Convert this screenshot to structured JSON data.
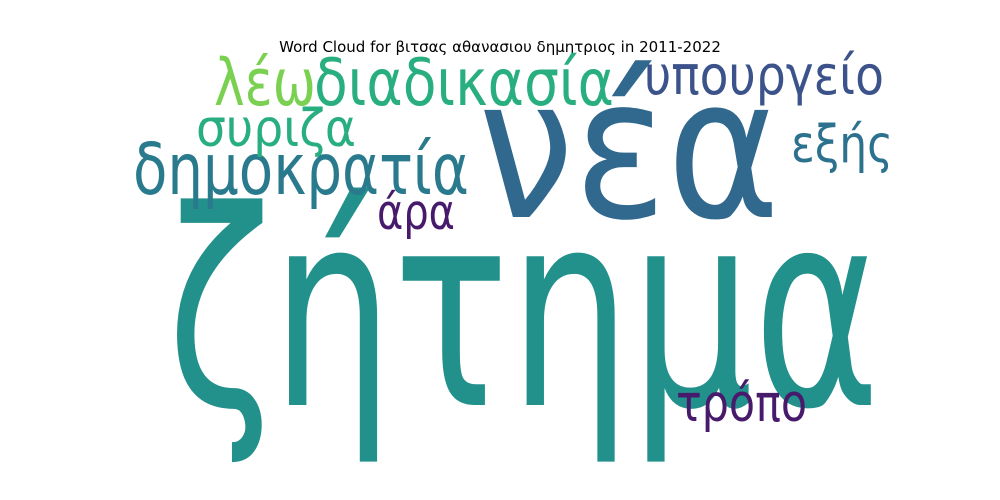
{
  "chart_data": {
    "type": "wordcloud",
    "title": "Word Cloud for βιτσας αθανασιου δημητριος in 2011-2022",
    "words": [
      {
        "text": "ζήτημα",
        "weight": 100,
        "color": "#22908b"
      },
      {
        "text": "νέα",
        "weight": 72,
        "color": "#31688e"
      },
      {
        "text": "δημοκρατία",
        "weight": 26,
        "color": "#2a7a8e"
      },
      {
        "text": "διαδικασία",
        "weight": 24,
        "color": "#29af7f"
      },
      {
        "text": "λέω",
        "weight": 24,
        "color": "#7ad151"
      },
      {
        "text": "υπουργείο",
        "weight": 20,
        "color": "#3b528b"
      },
      {
        "text": "συριζα",
        "weight": 19,
        "color": "#28ae80"
      },
      {
        "text": "εξής",
        "weight": 19,
        "color": "#2c728e"
      },
      {
        "text": "τρόπο",
        "weight": 19,
        "color": "#481a6c"
      },
      {
        "text": "άρα",
        "weight": 18,
        "color": "#481a6c"
      }
    ]
  }
}
